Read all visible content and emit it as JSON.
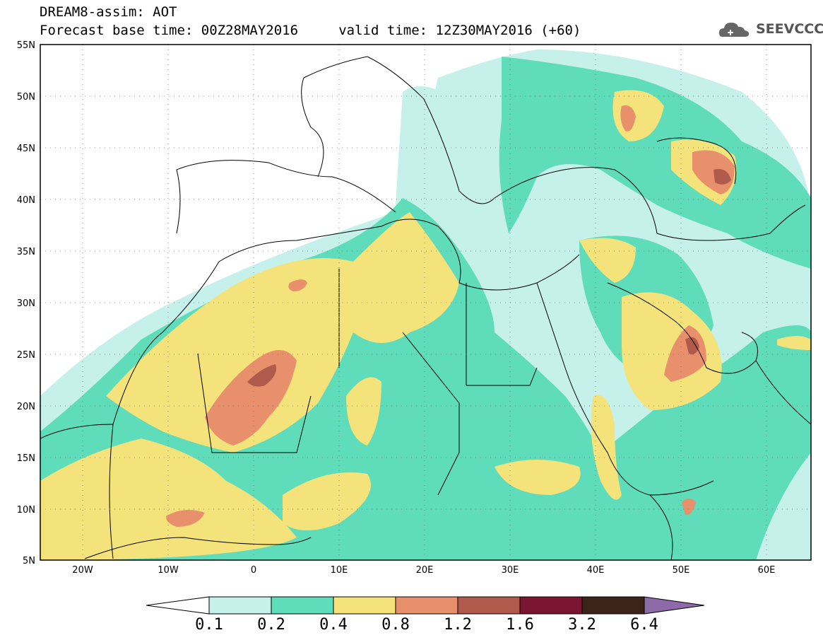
{
  "header": {
    "title": "DREAM8-assim: AOT",
    "subtitle": "Forecast base time: 00Z28MAY2016     valid time: 12Z30MAY2016 (+60)",
    "logo_text": "SEEVCCC"
  },
  "map": {
    "lat_range": [
      5,
      55
    ],
    "lon_range": [
      -25,
      65
    ],
    "lat_labels": [
      "55N",
      "50N",
      "45N",
      "40N",
      "35N",
      "30N",
      "25N",
      "20N",
      "15N",
      "10N",
      "5N"
    ],
    "lon_labels": [
      "20W",
      "10W",
      "0",
      "10E",
      "20E",
      "30E",
      "40E",
      "50E",
      "60E"
    ],
    "grid": "dotted"
  },
  "colorbar": {
    "labels": [
      "0.1",
      "0.2",
      "0.4",
      "0.8",
      "1.2",
      "1.6",
      "3.2",
      "6.4"
    ],
    "colors": [
      "#ffffff",
      "#c6f0ea",
      "#5fdcba",
      "#f4e27a",
      "#e8906c",
      "#b05a4c",
      "#7a1430",
      "#3c2418",
      "#8e6aa8"
    ]
  },
  "palette": {
    "land_border": "#000000",
    "aot_01": "#c6f0ea",
    "aot_02": "#5fdcba",
    "aot_04": "#f4e27a",
    "aot_08": "#e8906c",
    "aot_12": "#b05a4c",
    "aot_16": "#7a1430"
  }
}
